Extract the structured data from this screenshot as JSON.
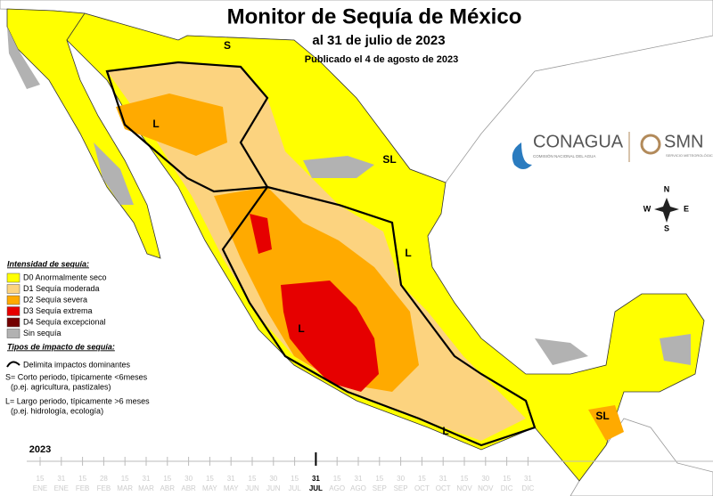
{
  "header": {
    "title": "Monitor de Sequía de México",
    "subtitle": "al 31 de julio de 2023",
    "published": "Publicado el 4 de agosto de 2023"
  },
  "legend": {
    "title": "Intensidad de sequía:",
    "items": [
      {
        "name": "D0 Anormalmente seco",
        "color": "#ffff00"
      },
      {
        "name": "D1 Sequía moderada",
        "color": "#fcd37f"
      },
      {
        "name": "D2 Sequía severa",
        "color": "#ffaa00"
      },
      {
        "name": "D3 Sequía extrema",
        "color": "#e60000"
      },
      {
        "name": "D4 Sequía excepcional",
        "color": "#730000"
      },
      {
        "name": "Sin sequía",
        "color": "#b2b2b2"
      }
    ],
    "impact_title": "Tipos de impacto de sequía:",
    "impact_lines": [
      "Delimita impactos dominantes",
      "S= Corto periodo, típicamente <6meses",
      "(p.ej. agricultura, pastizales)",
      "L= Largo periodo, típicamente >6 meses",
      "(p.ej. hidrología, ecología)"
    ]
  },
  "map_labels": [
    "S",
    "L",
    "SL",
    "L",
    "L",
    "L",
    "SL"
  ],
  "compass": {
    "n": "N",
    "s": "S",
    "e": "E",
    "w": "W"
  },
  "logos": {
    "conagua": "CONAGUA",
    "conagua_sub": "COMISIÓN NACIONAL DEL AGUA",
    "smn": "SMN",
    "smn_sub": "SERVICIO METEOROLÓGICO NACIONAL"
  },
  "timeline": {
    "year": "2023",
    "ticks": [
      {
        "day": "15",
        "month": "ENE"
      },
      {
        "day": "31",
        "month": "ENE"
      },
      {
        "day": "15",
        "month": "FEB"
      },
      {
        "day": "28",
        "month": "FEB"
      },
      {
        "day": "15",
        "month": "MAR"
      },
      {
        "day": "31",
        "month": "MAR"
      },
      {
        "day": "15",
        "month": "ABR"
      },
      {
        "day": "30",
        "month": "ABR"
      },
      {
        "day": "15",
        "month": "MAY"
      },
      {
        "day": "31",
        "month": "MAY"
      },
      {
        "day": "15",
        "month": "JUN"
      },
      {
        "day": "30",
        "month": "JUN"
      },
      {
        "day": "15",
        "month": "JUL"
      },
      {
        "day": "31",
        "month": "JUL",
        "highlight": true
      },
      {
        "day": "15",
        "month": "AGO"
      },
      {
        "day": "31",
        "month": "AGO"
      },
      {
        "day": "15",
        "month": "SEP"
      },
      {
        "day": "30",
        "month": "SEP"
      },
      {
        "day": "15",
        "month": "OCT"
      },
      {
        "day": "31",
        "month": "OCT"
      },
      {
        "day": "15",
        "month": "NOV"
      },
      {
        "day": "30",
        "month": "NOV"
      },
      {
        "day": "15",
        "month": "DIC"
      },
      {
        "day": "31",
        "month": "DIC"
      }
    ]
  }
}
